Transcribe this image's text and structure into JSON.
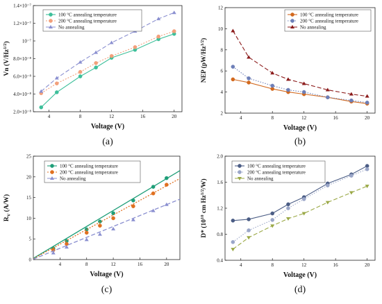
{
  "chart_data": [
    {
      "type": "line",
      "panel_label": "(a)",
      "xlabel": "Voltage (V)",
      "ylabel": "Vn (V/Hz^1/2)",
      "xlim": [
        2,
        21
      ],
      "ylim": [
        2e-08,
        1.4e-07
      ],
      "xticks": [
        4,
        8,
        12,
        16,
        20
      ],
      "yticks": [
        2e-08,
        4e-08,
        6e-08,
        8e-08,
        1e-07,
        1.2e-07,
        1.4e-07
      ],
      "ytick_labels": [
        "2.0×10⁻⁸",
        "4.0×10⁻⁸",
        "6.0×10⁻⁸",
        "8.0×10⁻⁸",
        "10⁻⁷",
        "1.2×10⁻⁷",
        "1.4×10⁻⁷"
      ],
      "legend": "top-left",
      "series": [
        {
          "name": "100 °C annealing temperature",
          "color": "#3dbf9a",
          "marker": "circle",
          "dash": "",
          "x": [
            3,
            5,
            8,
            10,
            12,
            15,
            18,
            20
          ],
          "y": [
            2.5e-08,
            4.2e-08,
            6e-08,
            7e-08,
            8.1e-08,
            9e-08,
            1.02e-07,
            1.08e-07
          ]
        },
        {
          "name": "200 °C annealing temperature",
          "color": "#f2a07b",
          "marker": "circle",
          "dash": "2,2",
          "x": [
            3,
            5,
            8,
            10,
            12,
            15,
            18,
            20
          ],
          "y": [
            4.1e-08,
            5.2e-08,
            6.5e-08,
            7.5e-08,
            8.3e-08,
            9.3e-08,
            1.05e-07,
            1.11e-07
          ]
        },
        {
          "name": "No annealing",
          "color": "#8a8fd0",
          "marker": "triangle",
          "dash": "6,3",
          "x": [
            3,
            5,
            8,
            10,
            12,
            15,
            18,
            20
          ],
          "y": [
            4.3e-08,
            5.8e-08,
            7.6e-08,
            8.7e-08,
            9.8e-08,
            1.11e-07,
            1.25e-07,
            1.32e-07
          ]
        }
      ]
    },
    {
      "type": "line",
      "panel_label": "(b)",
      "xlabel": "Voltage (V)",
      "ylabel": "NEP (pW/Hz^1/2)",
      "xlim": [
        2,
        21
      ],
      "ylim": [
        2,
        12
      ],
      "xticks": [
        4,
        8,
        12,
        16,
        20
      ],
      "yticks": [
        2,
        4,
        6,
        8,
        10,
        12
      ],
      "ytick_labels": [
        "2",
        "4",
        "6",
        "8",
        "10",
        "12"
      ],
      "legend": "top-right",
      "series": [
        {
          "name": "100 °C annealing temperature",
          "color": "#d2691e",
          "marker": "circle",
          "dash": "",
          "x": [
            3,
            5,
            8,
            10,
            12,
            15,
            18,
            20
          ],
          "y": [
            5.2,
            4.9,
            4.3,
            4.0,
            3.8,
            3.5,
            3.1,
            2.9
          ]
        },
        {
          "name": "200 °C annealing temperature",
          "color": "#6d7fb8",
          "marker": "circle",
          "dash": "1.5,2",
          "x": [
            3,
            5,
            8,
            10,
            12,
            15,
            18,
            20
          ],
          "y": [
            6.4,
            5.3,
            4.6,
            4.2,
            4.0,
            3.5,
            3.2,
            3.0
          ]
        },
        {
          "name": "No annealing",
          "color": "#8b1a1a",
          "marker": "triangle",
          "dash": "6,3",
          "x": [
            3,
            5,
            8,
            10,
            12,
            15,
            18,
            20
          ],
          "y": [
            9.8,
            7.3,
            5.8,
            5.2,
            4.8,
            4.2,
            3.8,
            3.6
          ]
        }
      ]
    },
    {
      "type": "line",
      "panel_label": "(c)",
      "xlabel": "Voltage (V)",
      "ylabel": "RV (A/W)",
      "xlim": [
        0,
        22
      ],
      "ylim": [
        0,
        25
      ],
      "xticks": [
        4,
        8,
        12,
        16,
        20
      ],
      "yticks": [
        0,
        5,
        10,
        15,
        20,
        25
      ],
      "ytick_labels": [
        "0",
        "5",
        "10",
        "15",
        "20",
        "25"
      ],
      "legend": "top-left",
      "series": [
        {
          "name": "100 °C annealing temperature",
          "color": "#1e9e78",
          "marker": "circle",
          "dash": "",
          "x": [
            3,
            5,
            8,
            10,
            12,
            15,
            18,
            20
          ],
          "y": [
            2.7,
            4.5,
            7.3,
            9.2,
            11.2,
            14.3,
            17.6,
            19.7
          ],
          "fit": [
            0,
            0.3,
            22,
            21.5
          ]
        },
        {
          "name": "200 °C annealing temperature",
          "color": "#e07020",
          "marker": "circle",
          "dash": "2,2",
          "x": [
            3,
            5,
            8,
            10,
            12,
            15,
            18,
            20
          ],
          "y": [
            2.3,
            3.8,
            6.5,
            8.2,
            10.0,
            12.9,
            16.0,
            18.1
          ],
          "fit": [
            0,
            0.2,
            22,
            19.6
          ]
        },
        {
          "name": "No annealing",
          "color": "#8a8fd0",
          "marker": "triangle",
          "dash": "6,3",
          "x": [
            3,
            5,
            8,
            10,
            12,
            15,
            18,
            20
          ],
          "y": [
            1.6,
            3.0,
            4.8,
            6.1,
            7.4,
            9.6,
            11.8,
            13.3
          ],
          "fit": [
            0,
            0.1,
            22,
            14.6
          ]
        }
      ]
    },
    {
      "type": "line",
      "panel_label": "(d)",
      "xlabel": "Voltage (V)",
      "ylabel": "D* (10^10 cm Hz^1/2/W)",
      "xlim": [
        2,
        21
      ],
      "ylim": [
        0.4,
        2.0
      ],
      "xticks": [
        4,
        8,
        12,
        16,
        20
      ],
      "yticks": [
        0.4,
        0.8,
        1.2,
        1.6,
        2.0
      ],
      "ytick_labels": [
        "0.4",
        "0.8",
        "1.2",
        "1.6",
        "2.0"
      ],
      "legend": "top-left",
      "series": [
        {
          "name": "100 °C annealing temperature",
          "color": "#4b5d85",
          "marker": "circle",
          "dash": "",
          "x": [
            3,
            5,
            8,
            10,
            12,
            15,
            18,
            20
          ],
          "y": [
            1.01,
            1.03,
            1.12,
            1.26,
            1.37,
            1.58,
            1.72,
            1.85
          ]
        },
        {
          "name": "200 °C annealing temperature",
          "color": "#9aa6c8",
          "marker": "circle",
          "dash": "1.5,2",
          "x": [
            3,
            5,
            8,
            10,
            12,
            15,
            18,
            20
          ],
          "y": [
            0.68,
            0.86,
            1.02,
            1.2,
            1.34,
            1.55,
            1.7,
            1.8
          ]
        },
        {
          "name": "No annealing",
          "color": "#9aa845",
          "marker": "triangle-down",
          "dash": "6,3",
          "x": [
            3,
            5,
            8,
            10,
            12,
            15,
            18,
            20
          ],
          "y": [
            0.57,
            0.75,
            0.93,
            1.04,
            1.12,
            1.29,
            1.44,
            1.54
          ]
        }
      ]
    }
  ]
}
